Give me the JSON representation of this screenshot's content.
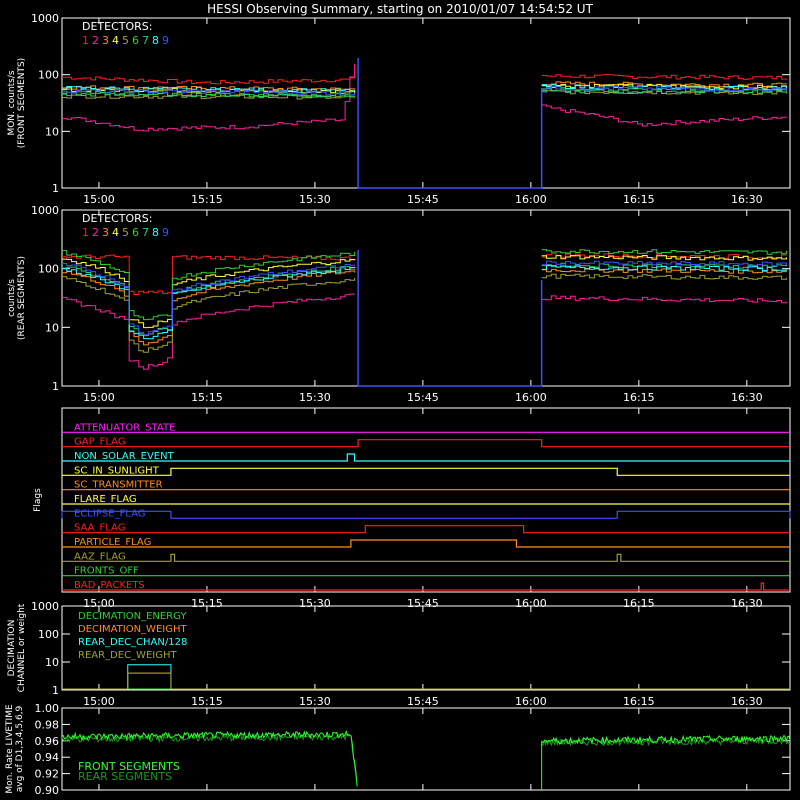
{
  "title": "HESSI Observing Summary, starting on 2010/01/07 14:54:52 UT",
  "colors": {
    "det1": "#ff2020",
    "det2": "#ff20a0",
    "det3": "#ff8c1e",
    "det4": "#ffff3c",
    "det5": "#a0a030",
    "det6": "#30d030",
    "det7": "#2ecc71",
    "det8": "#30ffff",
    "det9": "#3c50ff",
    "axis": "#ffffff"
  },
  "time_axis": {
    "range": [
      "14:54:52",
      "16:36:00"
    ],
    "ticks": [
      "15:00",
      "15:15",
      "15:30",
      "15:45",
      "16:00",
      "16:15",
      "16:30"
    ]
  },
  "detectors": {
    "label": "DETECTORS:",
    "digits": [
      "1",
      "2",
      "3",
      "4",
      "5",
      "6",
      "7",
      "8",
      "9"
    ]
  },
  "chart_data": [
    {
      "type": "line",
      "panel": "front",
      "ylabel_line1": "MON. counts/s",
      "ylabel_line2": "(FRONT SEGMENTS)",
      "yscale": "log",
      "ylim": [
        1,
        1000
      ],
      "yticks": [
        "1",
        "10",
        "100",
        "1000"
      ],
      "gap": [
        "15:36:00",
        "16:01:30"
      ],
      "series": [
        {
          "name": "1",
          "color": "#ff2020",
          "values": [
            [
              "14:55",
              90
            ],
            [
              "15:15",
              72
            ],
            [
              "15:35",
              82
            ],
            [
              "15:36",
              230
            ],
            [
              "16:02",
              95
            ],
            [
              "16:35",
              88
            ]
          ]
        },
        {
          "name": "2",
          "color": "#ff20a0",
          "values": [
            [
              "14:55",
              18
            ],
            [
              "15:05",
              11
            ],
            [
              "15:20",
              12
            ],
            [
              "15:34",
              16
            ],
            [
              "15:36",
              180
            ],
            [
              "16:02",
              26
            ],
            [
              "16:15",
              13
            ],
            [
              "16:35",
              18
            ]
          ]
        },
        {
          "name": "3",
          "color": "#ff8c1e",
          "values": [
            [
              "14:55",
              60
            ],
            [
              "15:35",
              55
            ],
            [
              "16:02",
              70
            ],
            [
              "16:35",
              65
            ]
          ]
        },
        {
          "name": "4",
          "color": "#ffff3c",
          "values": [
            [
              "14:55",
              55
            ],
            [
              "15:35",
              50
            ],
            [
              "16:02",
              65
            ],
            [
              "16:35",
              60
            ]
          ]
        },
        {
          "name": "5",
          "color": "#a0a030",
          "values": [
            [
              "14:55",
              42
            ],
            [
              "15:35",
              40
            ],
            [
              "16:02",
              50
            ],
            [
              "16:35",
              48
            ]
          ]
        },
        {
          "name": "6",
          "color": "#30d030",
          "values": [
            [
              "14:55",
              48
            ],
            [
              "15:35",
              42
            ],
            [
              "16:02",
              55
            ],
            [
              "16:35",
              52
            ]
          ]
        },
        {
          "name": "7",
          "color": "#2ecc71",
          "values": [
            [
              "14:55",
              45
            ],
            [
              "15:35",
              44
            ],
            [
              "16:02",
              52
            ],
            [
              "16:35",
              50
            ]
          ]
        },
        {
          "name": "8",
          "color": "#30ffff",
          "values": [
            [
              "14:55",
              58
            ],
            [
              "15:35",
              52
            ],
            [
              "16:02",
              62
            ],
            [
              "16:35",
              58
            ]
          ]
        },
        {
          "name": "9",
          "color": "#3c50ff",
          "values": [
            [
              "14:55",
              52
            ],
            [
              "15:35",
              48
            ],
            [
              "16:02",
              58
            ],
            [
              "16:35",
              55
            ]
          ]
        }
      ]
    },
    {
      "type": "line",
      "panel": "rear",
      "ylabel_line1": "counts/s",
      "ylabel_line2": "(REAR SEGMENTS)",
      "yscale": "log",
      "ylim": [
        1,
        1000
      ],
      "yticks": [
        "1",
        "10",
        "100",
        "1000"
      ],
      "gap": [
        "15:36:00",
        "16:01:30"
      ],
      "dip": [
        "15:04:00",
        "15:10:00"
      ],
      "series": [
        {
          "name": "1",
          "color": "#ff2020",
          "values": [
            [
              "14:55",
              160
            ],
            [
              "15:35",
              150
            ],
            [
              "16:02",
              170
            ],
            [
              "16:35",
              160
            ]
          ]
        },
        {
          "name": "2",
          "color": "#ff20a0",
          "values": [
            [
              "14:55",
              30
            ],
            [
              "15:06",
              8
            ],
            [
              "15:35",
              35
            ],
            [
              "16:02",
              32
            ],
            [
              "16:35",
              28
            ]
          ]
        },
        {
          "name": "3",
          "color": "#ff8c1e",
          "values": [
            [
              "14:55",
              90
            ],
            [
              "15:06",
              20
            ],
            [
              "15:35",
              90
            ],
            [
              "16:02",
              95
            ],
            [
              "16:35",
              90
            ]
          ]
        },
        {
          "name": "4",
          "color": "#ffff3c",
          "values": [
            [
              "14:55",
              150
            ],
            [
              "15:06",
              40
            ],
            [
              "15:35",
              140
            ],
            [
              "16:02",
              160
            ],
            [
              "16:35",
              150
            ]
          ]
        },
        {
          "name": "5",
          "color": "#a0a030",
          "values": [
            [
              "14:55",
              70
            ],
            [
              "15:06",
              15
            ],
            [
              "15:35",
              65
            ],
            [
              "16:02",
              75
            ],
            [
              "16:35",
              70
            ]
          ]
        },
        {
          "name": "6",
          "color": "#30d030",
          "values": [
            [
              "14:55",
              190
            ],
            [
              "15:06",
              50
            ],
            [
              "15:35",
              180
            ],
            [
              "16:02",
              200
            ],
            [
              "16:35",
              190
            ]
          ]
        },
        {
          "name": "7",
          "color": "#2ecc71",
          "values": [
            [
              "14:55",
              110
            ],
            [
              "15:06",
              30
            ],
            [
              "15:35",
              105
            ],
            [
              "16:02",
              115
            ],
            [
              "16:35",
              110
            ]
          ]
        },
        {
          "name": "8",
          "color": "#30ffff",
          "values": [
            [
              "14:55",
              100
            ],
            [
              "15:06",
              25
            ],
            [
              "15:35",
              100
            ],
            [
              "16:02",
              105
            ],
            [
              "16:35",
              100
            ]
          ]
        },
        {
          "name": "9",
          "color": "#3c50ff",
          "values": [
            [
              "14:55",
              120
            ],
            [
              "15:06",
              30
            ],
            [
              "15:35",
              115
            ],
            [
              "16:02",
              125
            ],
            [
              "16:35",
              120
            ]
          ]
        }
      ]
    },
    {
      "type": "line",
      "panel": "flags",
      "ylabel": "Flags",
      "flags": [
        {
          "name": "ATTENUATOR_STATE",
          "color": "#ff20ff",
          "steps": []
        },
        {
          "name": "GAP_FLAG",
          "color": "#ff2020",
          "steps": [
            [
              "15:36:00",
              "16:01:30"
            ]
          ]
        },
        {
          "name": "NON_SOLAR_EVENT",
          "color": "#30ffff",
          "steps": [
            [
              "15:34:30",
              "15:35:30"
            ]
          ]
        },
        {
          "name": "SC_IN_SUNLIGHT",
          "color": "#ffff3c",
          "steps": [
            [
              "15:10:00",
              "16:12:00"
            ]
          ]
        },
        {
          "name": "SC_TRANSMITTER",
          "color": "#ff8c1e",
          "steps": []
        },
        {
          "name": "FLARE_FLAG",
          "color": "#ffff3c",
          "steps": []
        },
        {
          "name": "ECLIPSE_FLAG",
          "color": "#3c50ff",
          "steps": [
            [
              "14:54:52",
              "15:10:00"
            ],
            [
              "16:12:00",
              "16:36:00"
            ]
          ]
        },
        {
          "name": "SAA_FLAG",
          "color": "#ff2020",
          "steps": [
            [
              "15:37:00",
              "15:59:00"
            ]
          ]
        },
        {
          "name": "PARTICLE_FLAG",
          "color": "#ff8c1e",
          "steps": [
            [
              "15:35:00",
              "15:58:00"
            ]
          ]
        },
        {
          "name": "AAZ_FLAG",
          "color": "#a0a030",
          "steps": [
            [
              "15:10:00",
              "15:10:30"
            ],
            [
              "16:12:00",
              "16:12:30"
            ]
          ]
        },
        {
          "name": "FRONTS_OFF",
          "color": "#30d030",
          "steps": []
        },
        {
          "name": "BAD_PACKETS",
          "color": "#ff2020",
          "steps": [
            [
              "16:32:00",
              "16:32:20"
            ]
          ]
        }
      ]
    },
    {
      "type": "line",
      "panel": "decimation",
      "ylabel_line1": "DECIMATION",
      "ylabel_line2": "CHANNEL or weight",
      "yscale": "log",
      "ylim": [
        1,
        1000
      ],
      "yticks": [
        "1",
        "10",
        "100",
        "1000"
      ],
      "series": [
        {
          "name": "DECIMATION_ENERGY",
          "color": "#30d030",
          "values": []
        },
        {
          "name": "DECIMATION_WEIGHT",
          "color": "#ff8c1e",
          "values": [
            [
              "15:04",
              4
            ],
            [
              "15:10",
              4
            ]
          ]
        },
        {
          "name": "REAR_DEC_CHAN/128",
          "color": "#30ffff",
          "values": [
            [
              "15:04",
              8
            ],
            [
              "15:10",
              8
            ]
          ]
        },
        {
          "name": "REAR_DEC_WEIGHT",
          "color": "#a0a030",
          "values": [
            [
              "15:04",
              4
            ],
            [
              "15:10",
              4
            ]
          ]
        }
      ]
    },
    {
      "type": "line",
      "panel": "livetime",
      "ylabel_line1": "Mon. Rate LIVETIME",
      "ylabel_line2": "avg of D1,3,4,5,6,9",
      "ylim": [
        0.9,
        1.0
      ],
      "yticks": [
        "0.90",
        "0.92",
        "0.94",
        "0.96",
        "0.98",
        "1.00"
      ],
      "gap": [
        "15:36:00",
        "16:01:30"
      ],
      "series": [
        {
          "name": "FRONT SEGMENTS",
          "color": "#30ff30",
          "values": [
            [
              "14:55",
              0.965
            ],
            [
              "15:35",
              0.968
            ],
            [
              "16:02",
              0.96
            ],
            [
              "16:35",
              0.963
            ]
          ]
        },
        {
          "name": "REAR SEGMENTS",
          "color": "#1a9a1a",
          "values": [
            [
              "14:55",
              0.962
            ],
            [
              "15:35",
              0.965
            ],
            [
              "16:02",
              0.958
            ],
            [
              "16:35",
              0.96
            ]
          ]
        }
      ]
    }
  ]
}
